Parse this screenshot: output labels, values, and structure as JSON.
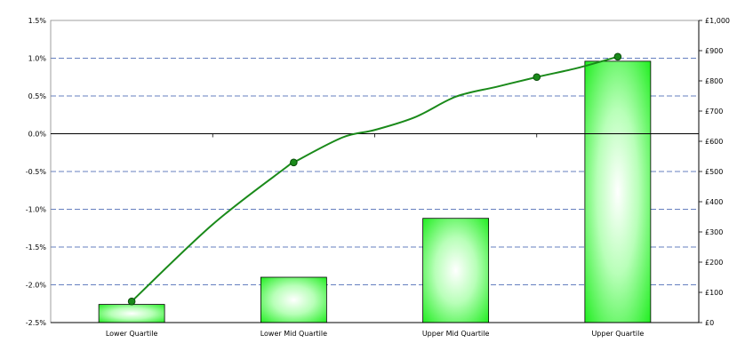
{
  "chart_data": {
    "type": "bar+line",
    "title": "",
    "categories": [
      "Lower Quartile",
      "Lower Mid Quartile",
      "Upper Mid Quartile",
      "Upper Quartile"
    ],
    "bar_series": {
      "axis": "right",
      "values": [
        60,
        150,
        345,
        865
      ],
      "color": "#33ff33"
    },
    "line_series": {
      "axis": "left",
      "points": [
        {
          "x": 0.0,
          "y": -2.22
        },
        {
          "x": 0.5,
          "y": -1.2
        },
        {
          "x": 0.95,
          "y": -0.45
        },
        {
          "x": 1.0,
          "y": -0.38
        },
        {
          "x": 1.3,
          "y": -0.05
        },
        {
          "x": 1.5,
          "y": 0.05
        },
        {
          "x": 1.75,
          "y": 0.22
        },
        {
          "x": 2.0,
          "y": 0.49
        },
        {
          "x": 2.25,
          "y": 0.62
        },
        {
          "x": 2.5,
          "y": 0.75
        },
        {
          "x": 2.75,
          "y": 0.87
        },
        {
          "x": 3.0,
          "y": 1.02
        }
      ],
      "markers": [
        0,
        3,
        9,
        11
      ],
      "color": "#1a8a1a"
    },
    "left_axis": {
      "min": -2.5,
      "max": 1.5,
      "ticks": [
        1.5,
        1.0,
        0.5,
        0.0,
        -0.5,
        -1.0,
        -1.5,
        -2.0,
        -2.5
      ],
      "tick_labels": [
        "1.5%",
        "1.0%",
        "0.5%",
        "0.0%",
        "-0.5%",
        "-1.0%",
        "-1.5%",
        "-2.0%",
        "-2.5%"
      ]
    },
    "right_axis": {
      "min": 0,
      "max": 1000,
      "ticks": [
        1000,
        900,
        800,
        700,
        600,
        500,
        400,
        300,
        200,
        100,
        0
      ],
      "tick_labels": [
        "£1,000",
        "£900",
        "£800",
        "£700",
        "£600",
        "£500",
        "£400",
        "£300",
        "£200",
        "£100",
        "£0"
      ]
    },
    "gridlines": [
      1.0,
      0.5,
      -0.5,
      -1.0,
      -1.5,
      -2.0
    ],
    "grid_color": "#3355aa",
    "zero_line": 0.0
  }
}
